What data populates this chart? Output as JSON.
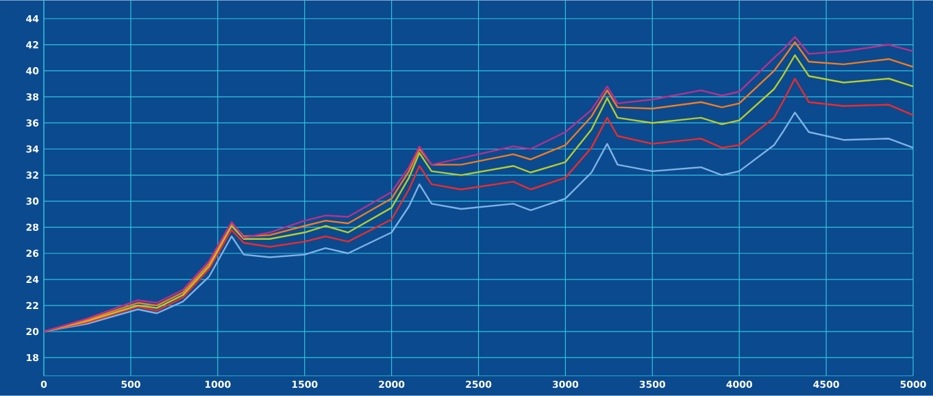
{
  "chart_data": {
    "type": "line",
    "x": [
      0,
      250,
      540,
      650,
      800,
      950,
      1080,
      1150,
      1300,
      1500,
      1620,
      1750,
      2000,
      2100,
      2160,
      2230,
      2400,
      2700,
      2800,
      3000,
      3150,
      3240,
      3300,
      3500,
      3780,
      3900,
      4000,
      4200,
      4250,
      4320,
      4400,
      4600,
      4860,
      5000
    ],
    "series": [
      {
        "color": "#7fb2e6",
        "values": [
          20,
          20.6,
          21.7,
          21.4,
          22.3,
          24.2,
          27.3,
          25.9,
          25.7,
          25.9,
          26.4,
          26.0,
          27.6,
          29.6,
          31.3,
          29.8,
          29.4,
          29.8,
          29.3,
          30.2,
          32.2,
          34.4,
          32.8,
          32.3,
          32.6,
          32.0,
          32.3,
          34.3,
          35.3,
          36.8,
          35.3,
          34.7,
          34.8,
          34.1
        ]
      },
      {
        "color": "#f02a2a",
        "values": [
          20,
          20.7,
          21.9,
          21.6,
          22.6,
          24.8,
          27.8,
          26.8,
          26.5,
          26.9,
          27.3,
          26.9,
          28.6,
          30.9,
          32.7,
          31.3,
          30.9,
          31.5,
          30.9,
          31.8,
          34.1,
          36.4,
          35.0,
          34.4,
          34.8,
          34.1,
          34.3,
          36.4,
          37.6,
          39.4,
          37.6,
          37.3,
          37.4,
          36.6
        ]
      },
      {
        "color": "#b8cc2a",
        "values": [
          20,
          20.8,
          22.0,
          21.8,
          22.8,
          25.0,
          28.1,
          27.1,
          27.1,
          27.6,
          28.1,
          27.6,
          29.5,
          31.8,
          33.7,
          32.3,
          32.0,
          32.7,
          32.2,
          33.0,
          35.5,
          37.9,
          36.4,
          36.0,
          36.4,
          35.9,
          36.2,
          38.6,
          39.6,
          41.2,
          39.6,
          39.1,
          39.4,
          38.8
        ]
      },
      {
        "color": "#f47c20",
        "values": [
          20,
          20.9,
          22.2,
          22.0,
          23.0,
          25.2,
          28.3,
          27.3,
          27.4,
          28.1,
          28.5,
          28.3,
          30.2,
          32.3,
          34.0,
          32.8,
          32.8,
          33.6,
          33.2,
          34.3,
          36.5,
          38.5,
          37.2,
          37.1,
          37.6,
          37.2,
          37.5,
          40.0,
          40.9,
          42.2,
          40.7,
          40.5,
          40.9,
          40.3
        ]
      },
      {
        "color": "#b8308c",
        "values": [
          20,
          21.0,
          22.4,
          22.2,
          23.2,
          25.4,
          28.4,
          27.2,
          27.6,
          28.5,
          28.9,
          28.8,
          30.7,
          32.6,
          34.2,
          32.8,
          33.3,
          34.2,
          34.0,
          35.3,
          37.0,
          38.8,
          37.5,
          37.8,
          38.5,
          38.1,
          38.4,
          41.0,
          41.6,
          42.6,
          41.3,
          41.5,
          42.0,
          41.5
        ]
      }
    ],
    "xlim": [
      0,
      5000
    ],
    "ylim": [
      16.6,
      45.4
    ],
    "xticks": [
      0,
      500,
      1000,
      1500,
      2000,
      2500,
      3000,
      3500,
      4000,
      4500,
      5000
    ],
    "yticks": [
      18,
      20,
      22,
      24,
      26,
      28,
      30,
      32,
      34,
      36,
      38,
      40,
      42,
      44
    ],
    "grid": true,
    "line_style": "solid"
  }
}
